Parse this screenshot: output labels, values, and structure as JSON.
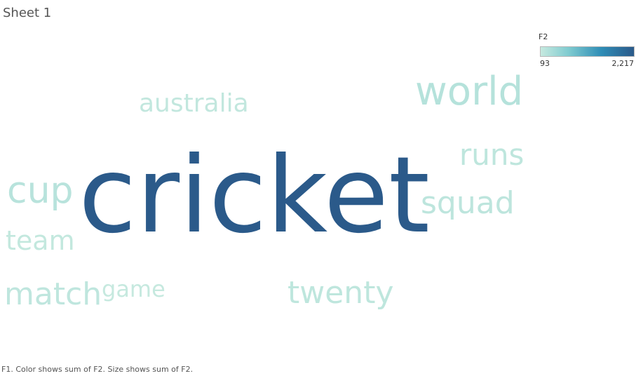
{
  "sheet": {
    "title": "Sheet 1",
    "caption": "F1.  Color shows sum of F2.  Size shows sum of F2."
  },
  "legend": {
    "title": "F2",
    "min_label": "93",
    "max_label": "2,217",
    "min_value": 93,
    "max_value": 2217,
    "colors": [
      "#c6e9df",
      "#7fcbd0",
      "#2f8db6",
      "#2b5a8a"
    ]
  },
  "chart_data": {
    "type": "wordcloud",
    "color_measure": "sum of F2",
    "size_measure": "sum of F2",
    "words": [
      {
        "text": "cricket",
        "value": 2217
      },
      {
        "text": "world",
        "value": 260
      },
      {
        "text": "cup",
        "value": 230
      },
      {
        "text": "squad",
        "value": 180
      },
      {
        "text": "runs",
        "value": 170
      },
      {
        "text": "twenty",
        "value": 170
      },
      {
        "text": "match",
        "value": 160
      },
      {
        "text": "australia",
        "value": 130
      },
      {
        "text": "team",
        "value": 120
      },
      {
        "text": "game",
        "value": 93
      }
    ]
  }
}
